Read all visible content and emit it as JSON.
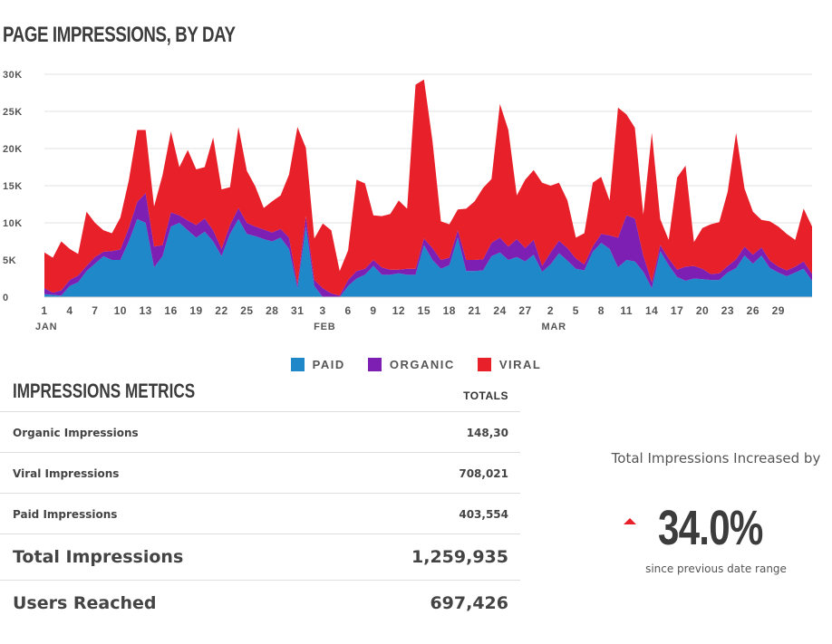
{
  "title": "PAGE IMPRESSIONS, BY DAY",
  "colors": {
    "paid": "#1f88c8",
    "organic": "#7e1fb4",
    "viral": "#e8202a",
    "grid": "#e0e0e0",
    "axis_text": "#555555"
  },
  "chart_data": {
    "type": "area",
    "stacking": "stacked",
    "title": "PAGE IMPRESSIONS, BY DAY",
    "ylim": [
      0,
      30000
    ],
    "y_ticks": [
      {
        "value": 0,
        "label": "0"
      },
      {
        "value": 5000,
        "label": "5K"
      },
      {
        "value": 10000,
        "label": "10K"
      },
      {
        "value": 15000,
        "label": "15K"
      },
      {
        "value": 20000,
        "label": "20K"
      },
      {
        "value": 25000,
        "label": "25K"
      },
      {
        "value": 30000,
        "label": "30K"
      }
    ],
    "x_ticks": [
      {
        "i": 0,
        "label": "1"
      },
      {
        "i": 3,
        "label": "4"
      },
      {
        "i": 6,
        "label": "7"
      },
      {
        "i": 9,
        "label": "10"
      },
      {
        "i": 12,
        "label": "13"
      },
      {
        "i": 15,
        "label": "16"
      },
      {
        "i": 18,
        "label": "19"
      },
      {
        "i": 21,
        "label": "22"
      },
      {
        "i": 24,
        "label": "25"
      },
      {
        "i": 27,
        "label": "28"
      },
      {
        "i": 30,
        "label": "31"
      },
      {
        "i": 33,
        "label": "3"
      },
      {
        "i": 36,
        "label": "6"
      },
      {
        "i": 39,
        "label": "9"
      },
      {
        "i": 42,
        "label": "12"
      },
      {
        "i": 45,
        "label": "15"
      },
      {
        "i": 48,
        "label": "18"
      },
      {
        "i": 51,
        "label": "21"
      },
      {
        "i": 54,
        "label": "24"
      },
      {
        "i": 57,
        "label": "27"
      },
      {
        "i": 60,
        "label": "2"
      },
      {
        "i": 63,
        "label": "5"
      },
      {
        "i": 66,
        "label": "8"
      },
      {
        "i": 69,
        "label": "11"
      },
      {
        "i": 72,
        "label": "14"
      },
      {
        "i": 75,
        "label": "17"
      },
      {
        "i": 78,
        "label": "20"
      },
      {
        "i": 81,
        "label": "23"
      },
      {
        "i": 84,
        "label": "26"
      },
      {
        "i": 87,
        "label": "29"
      }
    ],
    "month_labels": [
      {
        "i": 0,
        "label": "JAN"
      },
      {
        "i": 33,
        "label": "FEB"
      },
      {
        "i": 60,
        "label": "MAR"
      }
    ],
    "legend": [
      "PAID",
      "ORGANIC",
      "VIRAL"
    ],
    "legend_position": "bottom",
    "grid": true,
    "series": [
      {
        "name": "PAID",
        "values": [
          400,
          300,
          200,
          1500,
          2000,
          3500,
          4500,
          5500,
          5000,
          5000,
          7500,
          10500,
          10000,
          4000,
          5500,
          9500,
          10000,
          9000,
          8000,
          8800,
          7500,
          5500,
          8500,
          10500,
          8500,
          8200,
          7800,
          7500,
          8000,
          6500,
          1200,
          9500,
          1500,
          0,
          0,
          0,
          1500,
          2500,
          3000,
          4200,
          3000,
          3000,
          3200,
          3000,
          3000,
          7000,
          5000,
          3800,
          4300,
          8000,
          3500,
          3500,
          3600,
          5500,
          6000,
          5000,
          5400,
          4800,
          5700,
          3400,
          4400,
          5900,
          4900,
          3800,
          3600,
          6100,
          7300,
          6500,
          4000,
          5000,
          4800,
          3400,
          1200,
          6200,
          4300,
          2700,
          2200,
          2500,
          2400,
          2300,
          2300,
          3300,
          3900,
          5600,
          4500,
          5600,
          3900,
          3300,
          2800,
          3300,
          3800,
          2200
        ],
        "note": "values read approximately from chart"
      },
      {
        "name": "ORGANIC",
        "values": [
          800,
          300,
          700,
          800,
          900,
          700,
          900,
          600,
          1200,
          1400,
          1800,
          2300,
          4000,
          2800,
          1500,
          1900,
          1000,
          1300,
          1700,
          1800,
          1500,
          1000,
          1200,
          1500,
          1500,
          1300,
          1300,
          1200,
          1200,
          1500,
          500,
          1400,
          800,
          1200,
          500,
          200,
          800,
          1000,
          800,
          800,
          1000,
          700,
          500,
          800,
          800,
          900,
          1600,
          1200,
          1000,
          1000,
          1500,
          1500,
          1500,
          1800,
          2000,
          1800,
          2400,
          1800,
          2000,
          800,
          1600,
          1700,
          1700,
          1400,
          800,
          700,
          1200,
          1800,
          4000,
          6000,
          5800,
          2200,
          800,
          800,
          900,
          1000,
          1900,
          1700,
          1400,
          800,
          900,
          900,
          1200,
          1200,
          1200,
          1100,
          1000,
          800,
          800,
          800,
          1000,
          900
        ]
      },
      {
        "name": "VIRAL",
        "values": [
          4800,
          4700,
          6600,
          4200,
          2900,
          7300,
          4600,
          2900,
          2400,
          4300,
          6400,
          9700,
          8500,
          5400,
          9400,
          10900,
          6500,
          9500,
          7500,
          6900,
          12500,
          8000,
          5100,
          10900,
          7000,
          5400,
          2900,
          4200,
          4500,
          8500,
          21200,
          9200,
          5600,
          8700,
          8500,
          3300,
          4000,
          12300,
          11500,
          6000,
          6900,
          7500,
          9300,
          8100,
          24800,
          21400,
          14400,
          5200,
          4500,
          2800,
          6900,
          7900,
          9600,
          8600,
          18000,
          15700,
          5900,
          9200,
          9400,
          11200,
          9000,
          7800,
          6400,
          2800,
          4200,
          8600,
          7700,
          4700,
          17500,
          13600,
          12200,
          5500,
          20100,
          3500,
          2500,
          12400,
          13600,
          3200,
          5500,
          6700,
          6900,
          10000,
          17000,
          7800,
          5800,
          3700,
          5300,
          5400,
          4900,
          3600,
          7100,
          6400
        ]
      }
    ]
  },
  "metrics": {
    "title": "IMPRESSIONS METRICS",
    "totals_header": "TOTALS",
    "rows": [
      {
        "label": "Organic Impressions",
        "value": "148,30"
      },
      {
        "label": "Viral Impressions",
        "value": "708,021"
      },
      {
        "label": "Paid Impressions",
        "value": "403,554"
      },
      {
        "label": "Total Impressions",
        "value": "1,259,935"
      },
      {
        "label": "Users Reached",
        "value": "697,426"
      }
    ]
  },
  "kpi": {
    "headline": "Total Impressions Increased by",
    "value": "34.0%",
    "trend": "up",
    "subtext": "since previous date range"
  }
}
